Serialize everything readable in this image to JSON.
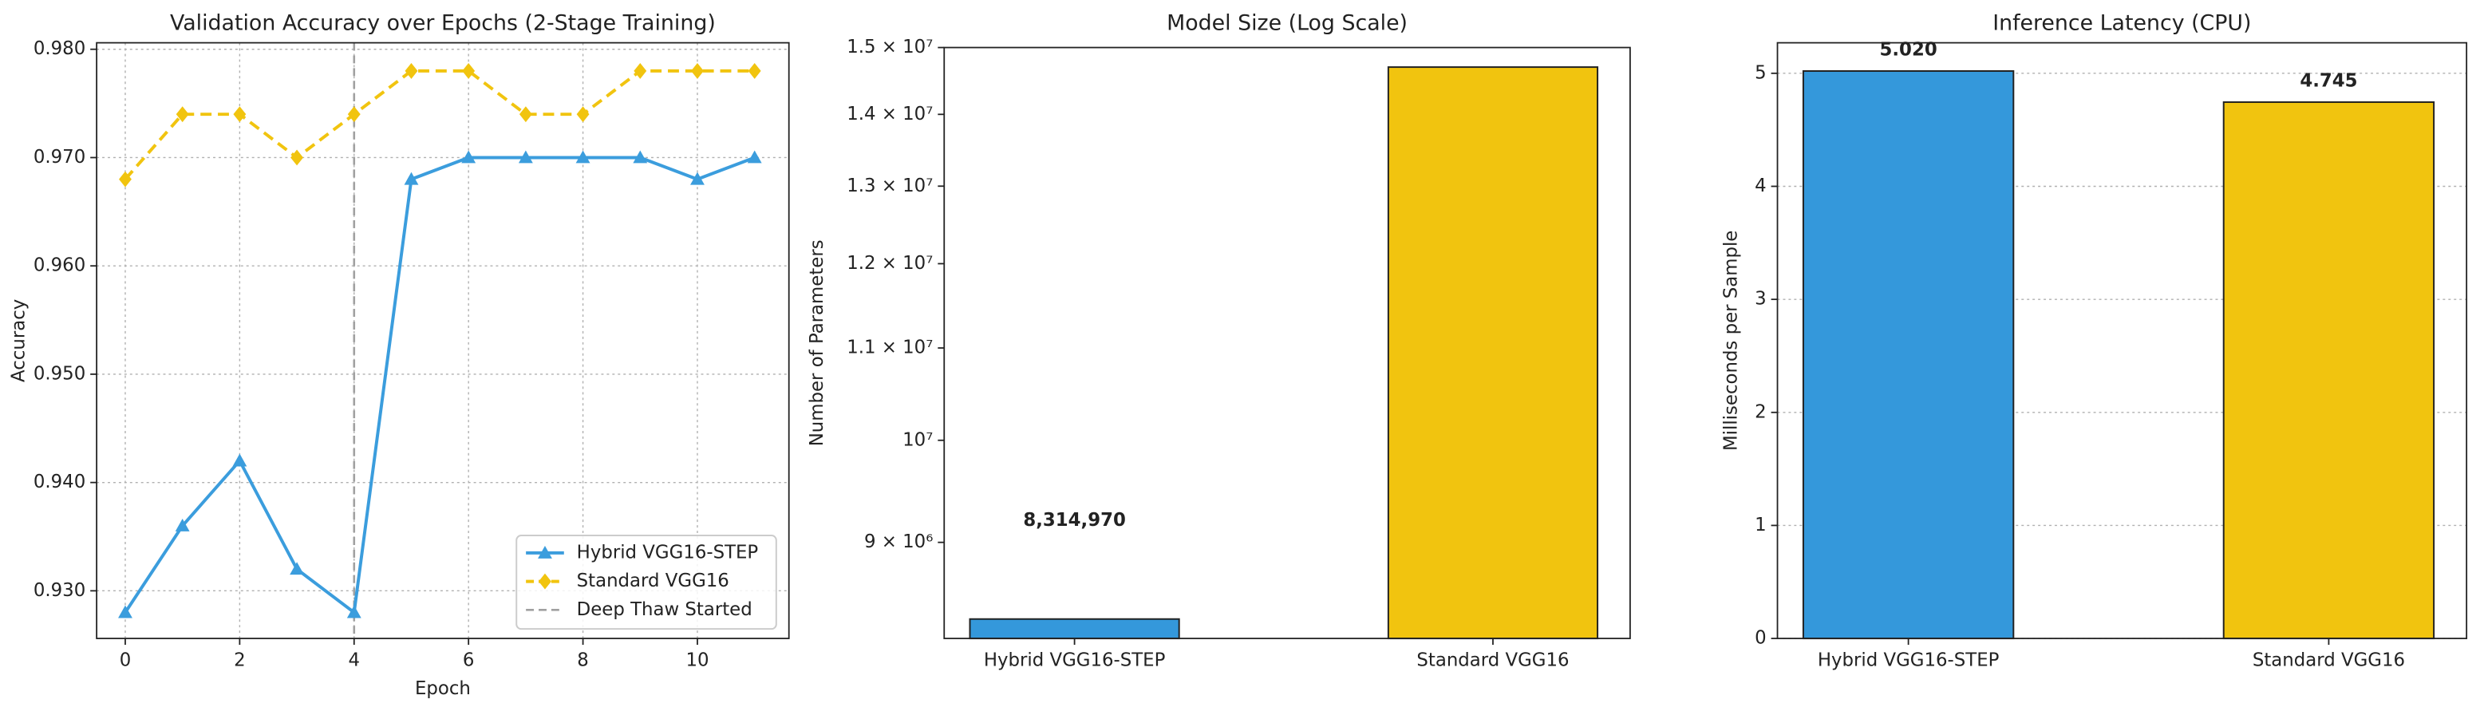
{
  "chart_data": [
    {
      "type": "line",
      "title": "Validation Accuracy over Epochs (2-Stage Training)",
      "xlabel": "Epoch",
      "ylabel": "Accuracy",
      "x": [
        0,
        1,
        2,
        3,
        4,
        5,
        6,
        7,
        8,
        9,
        10,
        11
      ],
      "series": [
        {
          "name": "Hybrid VGG16-STEP",
          "color": "#3b9ddd",
          "marker": "triangle",
          "linestyle": "solid",
          "values": [
            0.928,
            0.936,
            0.942,
            0.932,
            0.928,
            0.968,
            0.97,
            0.97,
            0.97,
            0.97,
            0.968,
            0.97
          ]
        },
        {
          "name": "Standard VGG16",
          "color": "#f1c40f",
          "marker": "diamond",
          "linestyle": "dashed",
          "values": [
            0.968,
            0.974,
            0.974,
            0.97,
            0.974,
            0.978,
            0.978,
            0.974,
            0.974,
            0.978,
            0.978,
            0.978
          ]
        }
      ],
      "vline": {
        "x": 4,
        "name": "Deep Thaw Started",
        "color": "#a0a0a0"
      },
      "xlim": [
        -0.5,
        11.6
      ],
      "ylim": [
        0.9256,
        0.9806
      ],
      "xticks": [
        0,
        2,
        4,
        6,
        8,
        10
      ],
      "yticks": [
        {
          "value": 0.93,
          "label": "0.930"
        },
        {
          "value": 0.94,
          "label": "0.940"
        },
        {
          "value": 0.95,
          "label": "0.950"
        },
        {
          "value": 0.96,
          "label": "0.960"
        },
        {
          "value": 0.97,
          "label": "0.970"
        },
        {
          "value": 0.98,
          "label": "0.980"
        }
      ],
      "grid": true,
      "legend": "lower right"
    },
    {
      "type": "bar",
      "title": "Model Size (Log Scale)",
      "ylabel": "Number of Parameters",
      "log_scale": true,
      "categories": [
        "Hybrid VGG16-STEP",
        "Standard VGG16"
      ],
      "values": [
        8314970,
        14700000
      ],
      "value_labels": [
        "8,314,970",
        null
      ],
      "colors": [
        "#3498db",
        "#f1c40f"
      ],
      "ylim": [
        8150000,
        15000000
      ],
      "yticks": [
        {
          "value": 9000000,
          "label": "9 × 10⁶"
        },
        {
          "value": 10000000,
          "label": "10⁷"
        },
        {
          "value": 11000000,
          "label": "1.1 × 10⁷"
        },
        {
          "value": 12000000,
          "label": "1.2 × 10⁷"
        },
        {
          "value": 13000000,
          "label": "1.3 × 10⁷"
        },
        {
          "value": 14000000,
          "label": "1.4 × 10⁷"
        },
        {
          "value": 15000000,
          "label": "1.5 × 10⁷"
        }
      ],
      "grid": false
    },
    {
      "type": "bar",
      "title": "Inference Latency (CPU)",
      "ylabel": "Milliseconds per Sample",
      "log_scale": false,
      "categories": [
        "Hybrid VGG16-STEP",
        "Standard VGG16"
      ],
      "values": [
        5.02,
        4.745
      ],
      "value_labels": [
        "5.020",
        "4.745"
      ],
      "colors": [
        "#3498db",
        "#f1c40f"
      ],
      "ylim": [
        0,
        5.27
      ],
      "yticks": [
        0,
        1,
        2,
        3,
        4,
        5
      ],
      "grid": true
    }
  ]
}
